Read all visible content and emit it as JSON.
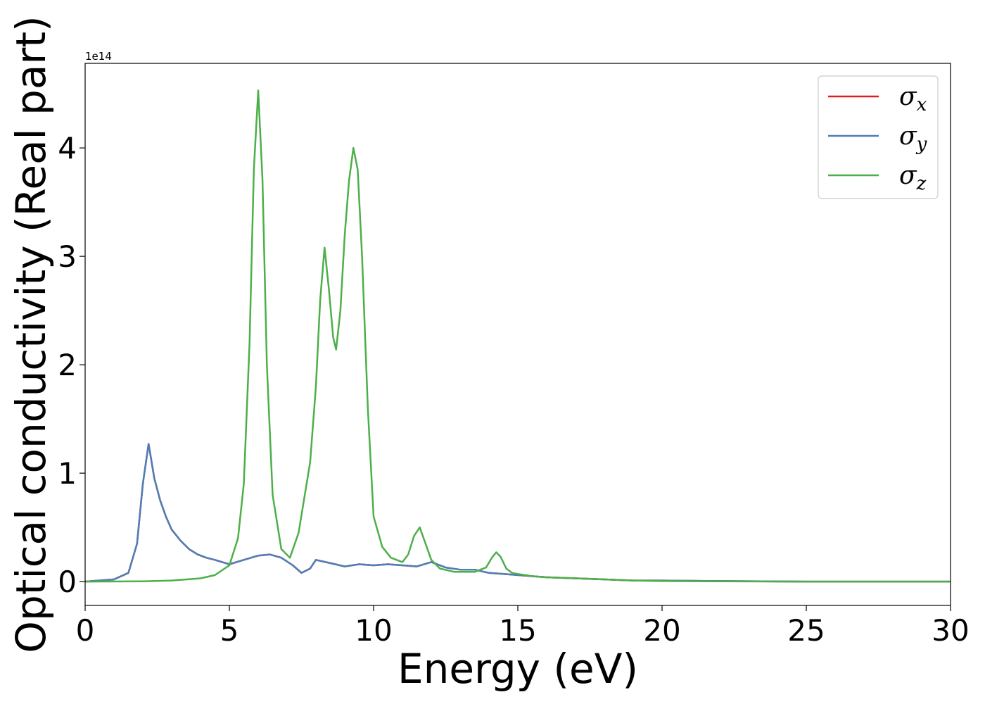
{
  "chart_data": {
    "type": "line",
    "xlabel": "Energy (eV)",
    "ylabel": "Optical conductivity (Real part)",
    "y_multiplier": "1e14",
    "xlim": [
      0,
      30
    ],
    "ylim": [
      -0.22,
      4.78
    ],
    "x_ticks": [
      0,
      5,
      10,
      15,
      20,
      25,
      30
    ],
    "y_ticks": [
      0,
      1,
      2,
      3,
      4
    ],
    "grid": false,
    "legend_position": "top-right",
    "series": [
      {
        "name": "σx",
        "legend_base": "σ",
        "legend_sub": "x",
        "color": "#e41a1c",
        "x": [
          0,
          1,
          1.5,
          1.8,
          2.0,
          2.2,
          2.4,
          2.6,
          2.8,
          3.0,
          3.3,
          3.6,
          3.9,
          4.2,
          4.5,
          5.0,
          5.5,
          6.0,
          6.4,
          6.8,
          7.2,
          7.5,
          7.8,
          8.0,
          8.5,
          9.0,
          9.5,
          10.0,
          10.5,
          11.0,
          11.5,
          12.0,
          12.5,
          13.0,
          13.5,
          14.0,
          14.5,
          15.0,
          16.0,
          17.0,
          18.0,
          19.0,
          20.0,
          22.0,
          25.0,
          30.0
        ],
        "y": [
          0.0,
          0.02,
          0.08,
          0.35,
          0.9,
          1.27,
          0.95,
          0.75,
          0.6,
          0.48,
          0.38,
          0.3,
          0.25,
          0.22,
          0.2,
          0.16,
          0.2,
          0.24,
          0.25,
          0.22,
          0.15,
          0.08,
          0.12,
          0.2,
          0.17,
          0.14,
          0.16,
          0.15,
          0.16,
          0.15,
          0.14,
          0.18,
          0.13,
          0.11,
          0.11,
          0.08,
          0.07,
          0.06,
          0.04,
          0.03,
          0.02,
          0.01,
          0.01,
          0.005,
          0.0,
          0.0
        ]
      },
      {
        "name": "σy",
        "legend_base": "σ",
        "legend_sub": "y",
        "color": "#4d7fb8",
        "x": [
          0,
          1,
          1.5,
          1.8,
          2.0,
          2.2,
          2.4,
          2.6,
          2.8,
          3.0,
          3.3,
          3.6,
          3.9,
          4.2,
          4.5,
          5.0,
          5.5,
          6.0,
          6.4,
          6.8,
          7.2,
          7.5,
          7.8,
          8.0,
          8.5,
          9.0,
          9.5,
          10.0,
          10.5,
          11.0,
          11.5,
          12.0,
          12.5,
          13.0,
          13.5,
          14.0,
          14.5,
          15.0,
          16.0,
          17.0,
          18.0,
          19.0,
          20.0,
          22.0,
          25.0,
          30.0
        ],
        "y": [
          0.0,
          0.02,
          0.08,
          0.35,
          0.9,
          1.27,
          0.95,
          0.75,
          0.6,
          0.48,
          0.38,
          0.3,
          0.25,
          0.22,
          0.2,
          0.16,
          0.2,
          0.24,
          0.25,
          0.22,
          0.15,
          0.08,
          0.12,
          0.2,
          0.17,
          0.14,
          0.16,
          0.15,
          0.16,
          0.15,
          0.14,
          0.18,
          0.13,
          0.11,
          0.11,
          0.08,
          0.07,
          0.06,
          0.04,
          0.03,
          0.02,
          0.01,
          0.01,
          0.005,
          0.0,
          0.0
        ]
      },
      {
        "name": "σz",
        "legend_base": "σ",
        "legend_sub": "z",
        "color": "#4daf4a",
        "x": [
          0,
          2,
          3,
          4,
          4.5,
          5.0,
          5.3,
          5.5,
          5.7,
          5.85,
          6.0,
          6.15,
          6.3,
          6.5,
          6.8,
          7.1,
          7.4,
          7.8,
          8.0,
          8.15,
          8.3,
          8.45,
          8.6,
          8.7,
          8.85,
          9.0,
          9.15,
          9.3,
          9.45,
          9.6,
          9.8,
          10.0,
          10.3,
          10.6,
          11.0,
          11.2,
          11.4,
          11.6,
          11.8,
          12.0,
          12.3,
          12.8,
          13.5,
          13.9,
          14.1,
          14.25,
          14.4,
          14.6,
          14.8,
          15.0,
          15.5,
          16.0,
          17.0,
          18.0,
          19.0,
          20.0,
          22.0,
          25.0,
          30.0
        ],
        "y": [
          0.0,
          0.003,
          0.01,
          0.03,
          0.06,
          0.15,
          0.4,
          0.9,
          2.2,
          3.8,
          4.53,
          3.7,
          2.0,
          0.8,
          0.3,
          0.22,
          0.45,
          1.1,
          1.8,
          2.6,
          3.08,
          2.7,
          2.25,
          2.14,
          2.5,
          3.2,
          3.7,
          4.0,
          3.8,
          3.0,
          1.6,
          0.6,
          0.32,
          0.22,
          0.18,
          0.25,
          0.42,
          0.5,
          0.35,
          0.2,
          0.12,
          0.09,
          0.09,
          0.13,
          0.22,
          0.27,
          0.23,
          0.12,
          0.08,
          0.07,
          0.05,
          0.04,
          0.03,
          0.02,
          0.01,
          0.005,
          0.002,
          0.0,
          0.0
        ]
      }
    ]
  }
}
